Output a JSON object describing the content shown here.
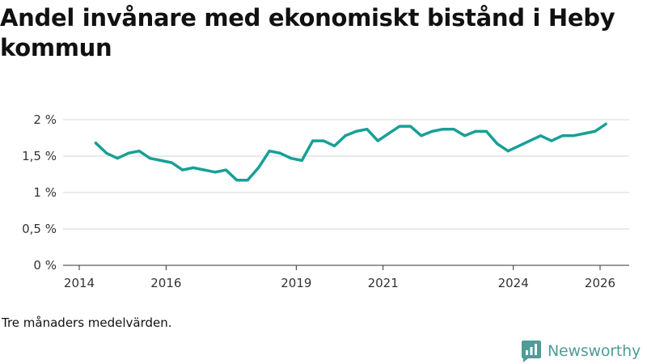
{
  "chart_data": {
    "type": "line",
    "title": "Andel invånare med ekonomiskt bistånd i Heby kommun",
    "xlabel": "",
    "ylabel": "",
    "xlim": [
      2013.9,
      2026.7
    ],
    "ylim": [
      0,
      2
    ],
    "yticks": [
      {
        "value": 0,
        "label": "0 %"
      },
      {
        "value": 0.5,
        "label": "0,5 %"
      },
      {
        "value": 1,
        "label": "1 %"
      },
      {
        "value": 1.5,
        "label": "1,5 %"
      },
      {
        "value": 2,
        "label": "2 %"
      }
    ],
    "xticks": [
      {
        "value": 2014,
        "label": "2014"
      },
      {
        "value": 2016,
        "label": "2016"
      },
      {
        "value": 2019,
        "label": "2019"
      },
      {
        "value": 2021,
        "label": "2021"
      },
      {
        "value": 2024,
        "label": "2024"
      },
      {
        "value": 2026,
        "label": "2026"
      }
    ],
    "series": [
      {
        "name": "Andel invånare med ekonomiskt bistånd",
        "color": "#17a096",
        "x": [
          2014.38,
          2014.63,
          2014.88,
          2015.13,
          2015.38,
          2015.63,
          2015.88,
          2016.13,
          2016.38,
          2016.63,
          2016.88,
          2017.13,
          2017.38,
          2017.63,
          2017.88,
          2018.13,
          2018.38,
          2018.63,
          2018.88,
          2019.13,
          2019.38,
          2019.63,
          2019.88,
          2020.13,
          2020.38,
          2020.63,
          2020.88,
          2021.13,
          2021.38,
          2021.63,
          2021.88,
          2022.13,
          2022.38,
          2022.63,
          2022.88,
          2023.13,
          2023.38,
          2023.63,
          2023.88,
          2024.13,
          2024.38,
          2024.63,
          2024.88,
          2025.13,
          2025.38,
          2025.63,
          2025.88,
          2026.13
        ],
        "y": [
          1.68,
          1.54,
          1.47,
          1.54,
          1.57,
          1.47,
          1.44,
          1.41,
          1.31,
          1.34,
          1.31,
          1.28,
          1.31,
          1.17,
          1.17,
          1.34,
          1.57,
          1.54,
          1.47,
          1.44,
          1.71,
          1.71,
          1.64,
          1.78,
          1.84,
          1.87,
          1.71,
          1.81,
          1.91,
          1.91,
          1.78,
          1.84,
          1.87,
          1.87,
          1.78,
          1.84,
          1.84,
          1.67,
          1.57,
          1.64,
          1.71,
          1.78,
          1.71,
          1.78,
          1.78,
          1.81,
          1.84,
          1.94
        ]
      }
    ]
  },
  "footer": {
    "note": "Tre månaders medelvärden.",
    "brand": "Newsworthy",
    "brand_color": "#4f9c98"
  }
}
